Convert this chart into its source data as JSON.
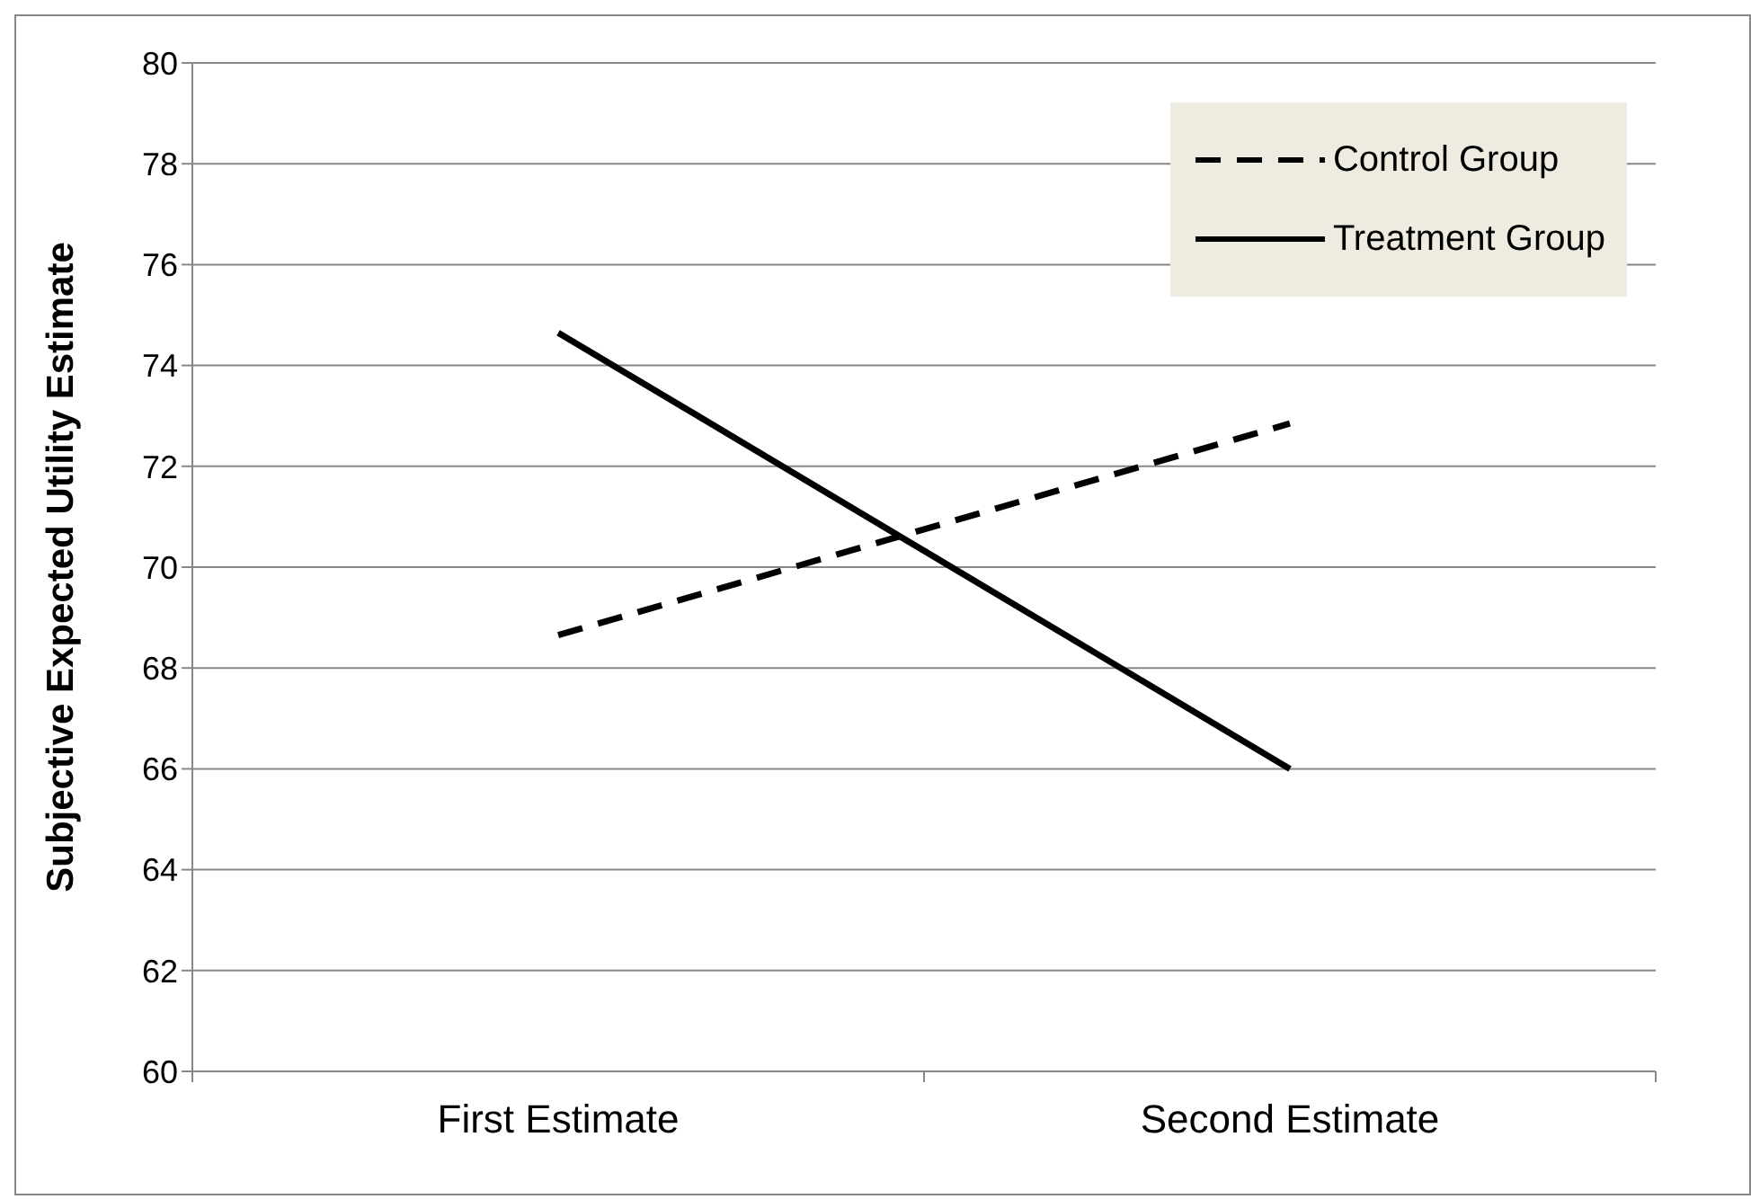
{
  "chart_data": {
    "type": "line",
    "ylabel": "Subjective Expected Utility Estimate",
    "categories": [
      "First Estimate",
      "Second Estimate"
    ],
    "series": [
      {
        "name": "Control Group",
        "color": "#000000",
        "line_style": "dashed",
        "values": [
          68.65,
          72.85
        ]
      },
      {
        "name": "Treatment Group",
        "color": "#000000",
        "line_style": "solid",
        "values": [
          74.65,
          66.0
        ]
      }
    ],
    "ylim": [
      60,
      80
    ],
    "yticks": [
      60,
      62,
      64,
      66,
      68,
      70,
      72,
      74,
      76,
      78,
      80
    ],
    "grid": "y",
    "legend": "top right",
    "marker": "none"
  }
}
